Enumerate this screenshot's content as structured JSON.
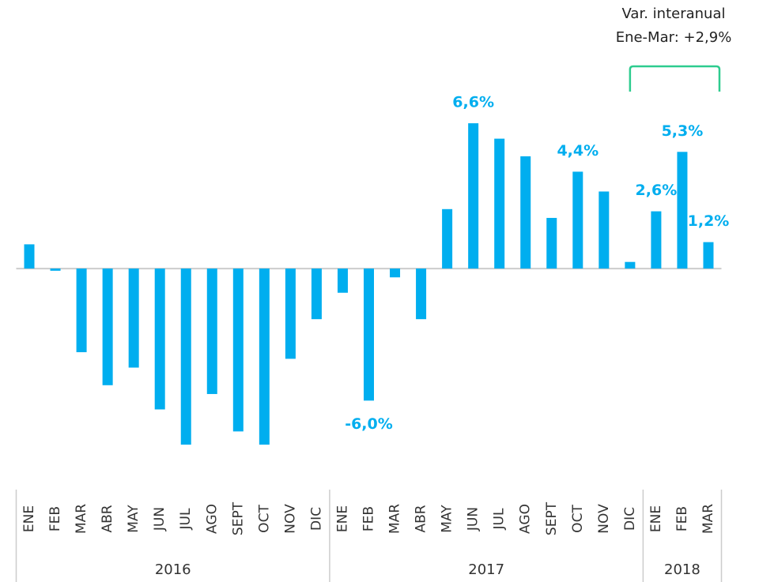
{
  "chart_data": {
    "type": "bar",
    "color": "#00aeef",
    "ylim": [
      -8.5,
      7.5
    ],
    "groups": [
      {
        "name": "2016",
        "categories": [
          "ENE",
          "FEB",
          "MAR",
          "ABR",
          "MAY",
          "JUN",
          "JUL",
          "AGO",
          "SEPT",
          "OCT",
          "NOV",
          "DIC"
        ],
        "values": [
          1.1,
          -0.1,
          -3.8,
          -5.3,
          -4.5,
          -6.4,
          -8.0,
          -5.7,
          -7.4,
          -8.0,
          -4.1,
          -2.3
        ],
        "value_labels": [
          null,
          null,
          null,
          null,
          null,
          null,
          null,
          null,
          null,
          null,
          null,
          null
        ]
      },
      {
        "name": "2017",
        "categories": [
          "ENE",
          "FEB",
          "MAR",
          "ABR",
          "MAY",
          "JUN",
          "JUL",
          "AGO",
          "SEPT",
          "OCT",
          "NOV",
          "DIC"
        ],
        "values": [
          -1.1,
          -6.0,
          -0.4,
          -2.3,
          2.7,
          6.6,
          5.9,
          5.1,
          2.3,
          4.4,
          3.5,
          0.3
        ],
        "value_labels": [
          null,
          "-6,0%",
          null,
          null,
          null,
          "6,6%",
          null,
          null,
          null,
          "4,4%",
          null,
          null
        ]
      },
      {
        "name": "2018",
        "categories": [
          "ENE",
          "FEB",
          "MAR"
        ],
        "values": [
          2.6,
          5.3,
          1.2
        ],
        "value_labels": [
          "2,6%",
          "5,3%",
          "1,2%"
        ]
      }
    ],
    "annotation": {
      "lines": [
        "Var. interanual",
        "Ene-Mar: +2,9%"
      ],
      "color": "#2ecc8f"
    }
  }
}
